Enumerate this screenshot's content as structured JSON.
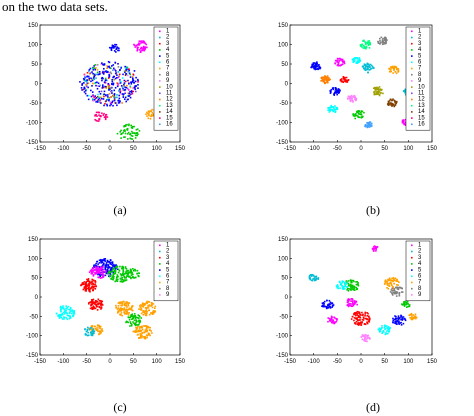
{
  "caption_fragment": "on the two data sets.",
  "colors": [
    "#ff00ff",
    "#00bcd4",
    "#ff0000",
    "#00c800",
    "#0000ff",
    "#00ffff",
    "#ffa000",
    "#808080",
    "#ff80ff",
    "#a0a000",
    "#8040ff",
    "#ff8000",
    "#00ff80",
    "#804000",
    "#ff0080",
    "#40a0ff"
  ],
  "chart_data": [
    {
      "type": "scatter",
      "panel_label": "(a)",
      "xlim": [
        -150,
        150
      ],
      "ylim": [
        -150,
        150
      ],
      "xticks": [
        "-150",
        "-100",
        "-50",
        "0",
        "50",
        "100",
        "150"
      ],
      "yticks": [
        "150",
        "100",
        "50",
        "0",
        "-50",
        "-100",
        "-150"
      ],
      "legend": [
        "1",
        "2",
        "3",
        "4",
        "5",
        "6",
        "7",
        "8",
        "9",
        "10",
        "11",
        "12",
        "13",
        "14",
        "15",
        "16"
      ],
      "clusters": [
        {
          "c": 0,
          "x": 0,
          "y": 0,
          "r": 68,
          "n": 420,
          "mix": true
        },
        {
          "c": 0,
          "x": 65,
          "y": 95,
          "r": 18,
          "n": 50
        },
        {
          "c": 4,
          "x": 10,
          "y": 90,
          "r": 12,
          "n": 25
        },
        {
          "c": 3,
          "x": 40,
          "y": -125,
          "r": 25,
          "n": 60
        },
        {
          "c": 6,
          "x": 95,
          "y": -80,
          "r": 20,
          "n": 50
        },
        {
          "c": 14,
          "x": -20,
          "y": -85,
          "r": 16,
          "n": 30
        }
      ]
    },
    {
      "type": "scatter",
      "panel_label": "(b)",
      "xlim": [
        -150,
        150
      ],
      "ylim": [
        -150,
        150
      ],
      "xticks": [
        "-150",
        "-100",
        "-50",
        "0",
        "50",
        "100",
        "150"
      ],
      "yticks": [
        "150",
        "100",
        "50",
        "0",
        "-50",
        "-100",
        "-150"
      ],
      "legend": [
        "1",
        "2",
        "3",
        "4",
        "5",
        "6",
        "7",
        "8",
        "9",
        "10",
        "11",
        "12",
        "13",
        "14",
        "15",
        "16"
      ],
      "clusters": [
        {
          "c": 4,
          "x": -95,
          "y": 45,
          "r": 12,
          "n": 45
        },
        {
          "c": 11,
          "x": -75,
          "y": 10,
          "r": 12,
          "n": 45
        },
        {
          "c": 0,
          "x": -45,
          "y": 55,
          "r": 12,
          "n": 35
        },
        {
          "c": 2,
          "x": -35,
          "y": 10,
          "r": 10,
          "n": 30
        },
        {
          "c": 5,
          "x": -10,
          "y": 60,
          "r": 10,
          "n": 35
        },
        {
          "c": 12,
          "x": 10,
          "y": 100,
          "r": 14,
          "n": 40
        },
        {
          "c": 7,
          "x": 45,
          "y": 110,
          "r": 12,
          "n": 40
        },
        {
          "c": 1,
          "x": 15,
          "y": 40,
          "r": 14,
          "n": 45
        },
        {
          "c": 6,
          "x": 70,
          "y": 35,
          "r": 12,
          "n": 40
        },
        {
          "c": 10,
          "x": 105,
          "y": 60,
          "r": 10,
          "n": 30
        },
        {
          "c": 4,
          "x": -55,
          "y": -20,
          "r": 12,
          "n": 40
        },
        {
          "c": 8,
          "x": -20,
          "y": -40,
          "r": 12,
          "n": 35
        },
        {
          "c": 5,
          "x": -60,
          "y": -65,
          "r": 12,
          "n": 35
        },
        {
          "c": 3,
          "x": -5,
          "y": -80,
          "r": 14,
          "n": 40
        },
        {
          "c": 9,
          "x": 35,
          "y": -20,
          "r": 14,
          "n": 45
        },
        {
          "c": 13,
          "x": 65,
          "y": -50,
          "r": 12,
          "n": 40
        },
        {
          "c": 1,
          "x": 100,
          "y": -20,
          "r": 12,
          "n": 40
        },
        {
          "c": 0,
          "x": 95,
          "y": -100,
          "r": 10,
          "n": 30
        },
        {
          "c": 15,
          "x": 15,
          "y": -105,
          "r": 10,
          "n": 30
        }
      ]
    },
    {
      "type": "scatter",
      "panel_label": "(c)",
      "xlim": [
        -150,
        150
      ],
      "ylim": [
        -150,
        150
      ],
      "xticks": [
        "-150",
        "-100",
        "-50",
        "0",
        "50",
        "100",
        "150"
      ],
      "yticks": [
        "150",
        "100",
        "50",
        "0",
        "-50",
        "-100",
        "-150"
      ],
      "legend": [
        "1",
        "2",
        "3",
        "4",
        "5",
        "6",
        "7",
        "8",
        "9"
      ],
      "clusters": [
        {
          "c": 4,
          "x": -10,
          "y": 75,
          "r": 28,
          "n": 150
        },
        {
          "c": 0,
          "x": -25,
          "y": 65,
          "r": 20,
          "n": 70
        },
        {
          "c": 3,
          "x": 20,
          "y": 60,
          "r": 26,
          "n": 110
        },
        {
          "c": 3,
          "x": 50,
          "y": 60,
          "r": 16,
          "n": 40
        },
        {
          "c": 2,
          "x": -45,
          "y": 30,
          "r": 20,
          "n": 90
        },
        {
          "c": 2,
          "x": -30,
          "y": -20,
          "r": 18,
          "n": 70
        },
        {
          "c": 5,
          "x": -95,
          "y": -40,
          "r": 22,
          "n": 80
        },
        {
          "c": 6,
          "x": 30,
          "y": -30,
          "r": 22,
          "n": 90
        },
        {
          "c": 6,
          "x": 80,
          "y": -30,
          "r": 22,
          "n": 80
        },
        {
          "c": 6,
          "x": 70,
          "y": -90,
          "r": 22,
          "n": 90
        },
        {
          "c": 6,
          "x": -30,
          "y": -85,
          "r": 16,
          "n": 50
        },
        {
          "c": 3,
          "x": 50,
          "y": -60,
          "r": 20,
          "n": 60
        },
        {
          "c": 1,
          "x": -45,
          "y": -90,
          "r": 14,
          "n": 30
        }
      ]
    },
    {
      "type": "scatter",
      "panel_label": "(d)",
      "xlim": [
        -150,
        150
      ],
      "ylim": [
        -150,
        150
      ],
      "xticks": [
        "-150",
        "-100",
        "-50",
        "0",
        "50",
        "100",
        "150"
      ],
      "yticks": [
        "150",
        "100",
        "50",
        "0",
        "-50",
        "-100",
        "-150"
      ],
      "legend": [
        "1",
        "2",
        "3",
        "4",
        "5",
        "6",
        "7",
        "8",
        "9"
      ],
      "clusters": [
        {
          "c": 4,
          "x": -70,
          "y": -20,
          "r": 14,
          "n": 45
        },
        {
          "c": 3,
          "x": -20,
          "y": 30,
          "r": 18,
          "n": 55
        },
        {
          "c": 0,
          "x": -20,
          "y": -15,
          "r": 14,
          "n": 40
        },
        {
          "c": 5,
          "x": -40,
          "y": 30,
          "r": 14,
          "n": 40
        },
        {
          "c": 2,
          "x": 0,
          "y": -55,
          "r": 22,
          "n": 90
        },
        {
          "c": 6,
          "x": 65,
          "y": 35,
          "r": 18,
          "n": 55
        },
        {
          "c": 7,
          "x": 75,
          "y": 15,
          "r": 16,
          "n": 40
        },
        {
          "c": 1,
          "x": -100,
          "y": 50,
          "r": 12,
          "n": 30
        },
        {
          "c": 4,
          "x": 80,
          "y": -60,
          "r": 16,
          "n": 45
        },
        {
          "c": 5,
          "x": 50,
          "y": -85,
          "r": 14,
          "n": 40
        },
        {
          "c": 0,
          "x": -60,
          "y": -60,
          "r": 12,
          "n": 30
        },
        {
          "c": 8,
          "x": 10,
          "y": -105,
          "r": 12,
          "n": 30
        },
        {
          "c": 0,
          "x": 30,
          "y": 125,
          "r": 8,
          "n": 20
        },
        {
          "c": 6,
          "x": 110,
          "y": -50,
          "r": 10,
          "n": 25
        },
        {
          "c": 3,
          "x": 95,
          "y": -20,
          "r": 10,
          "n": 25
        }
      ]
    }
  ]
}
